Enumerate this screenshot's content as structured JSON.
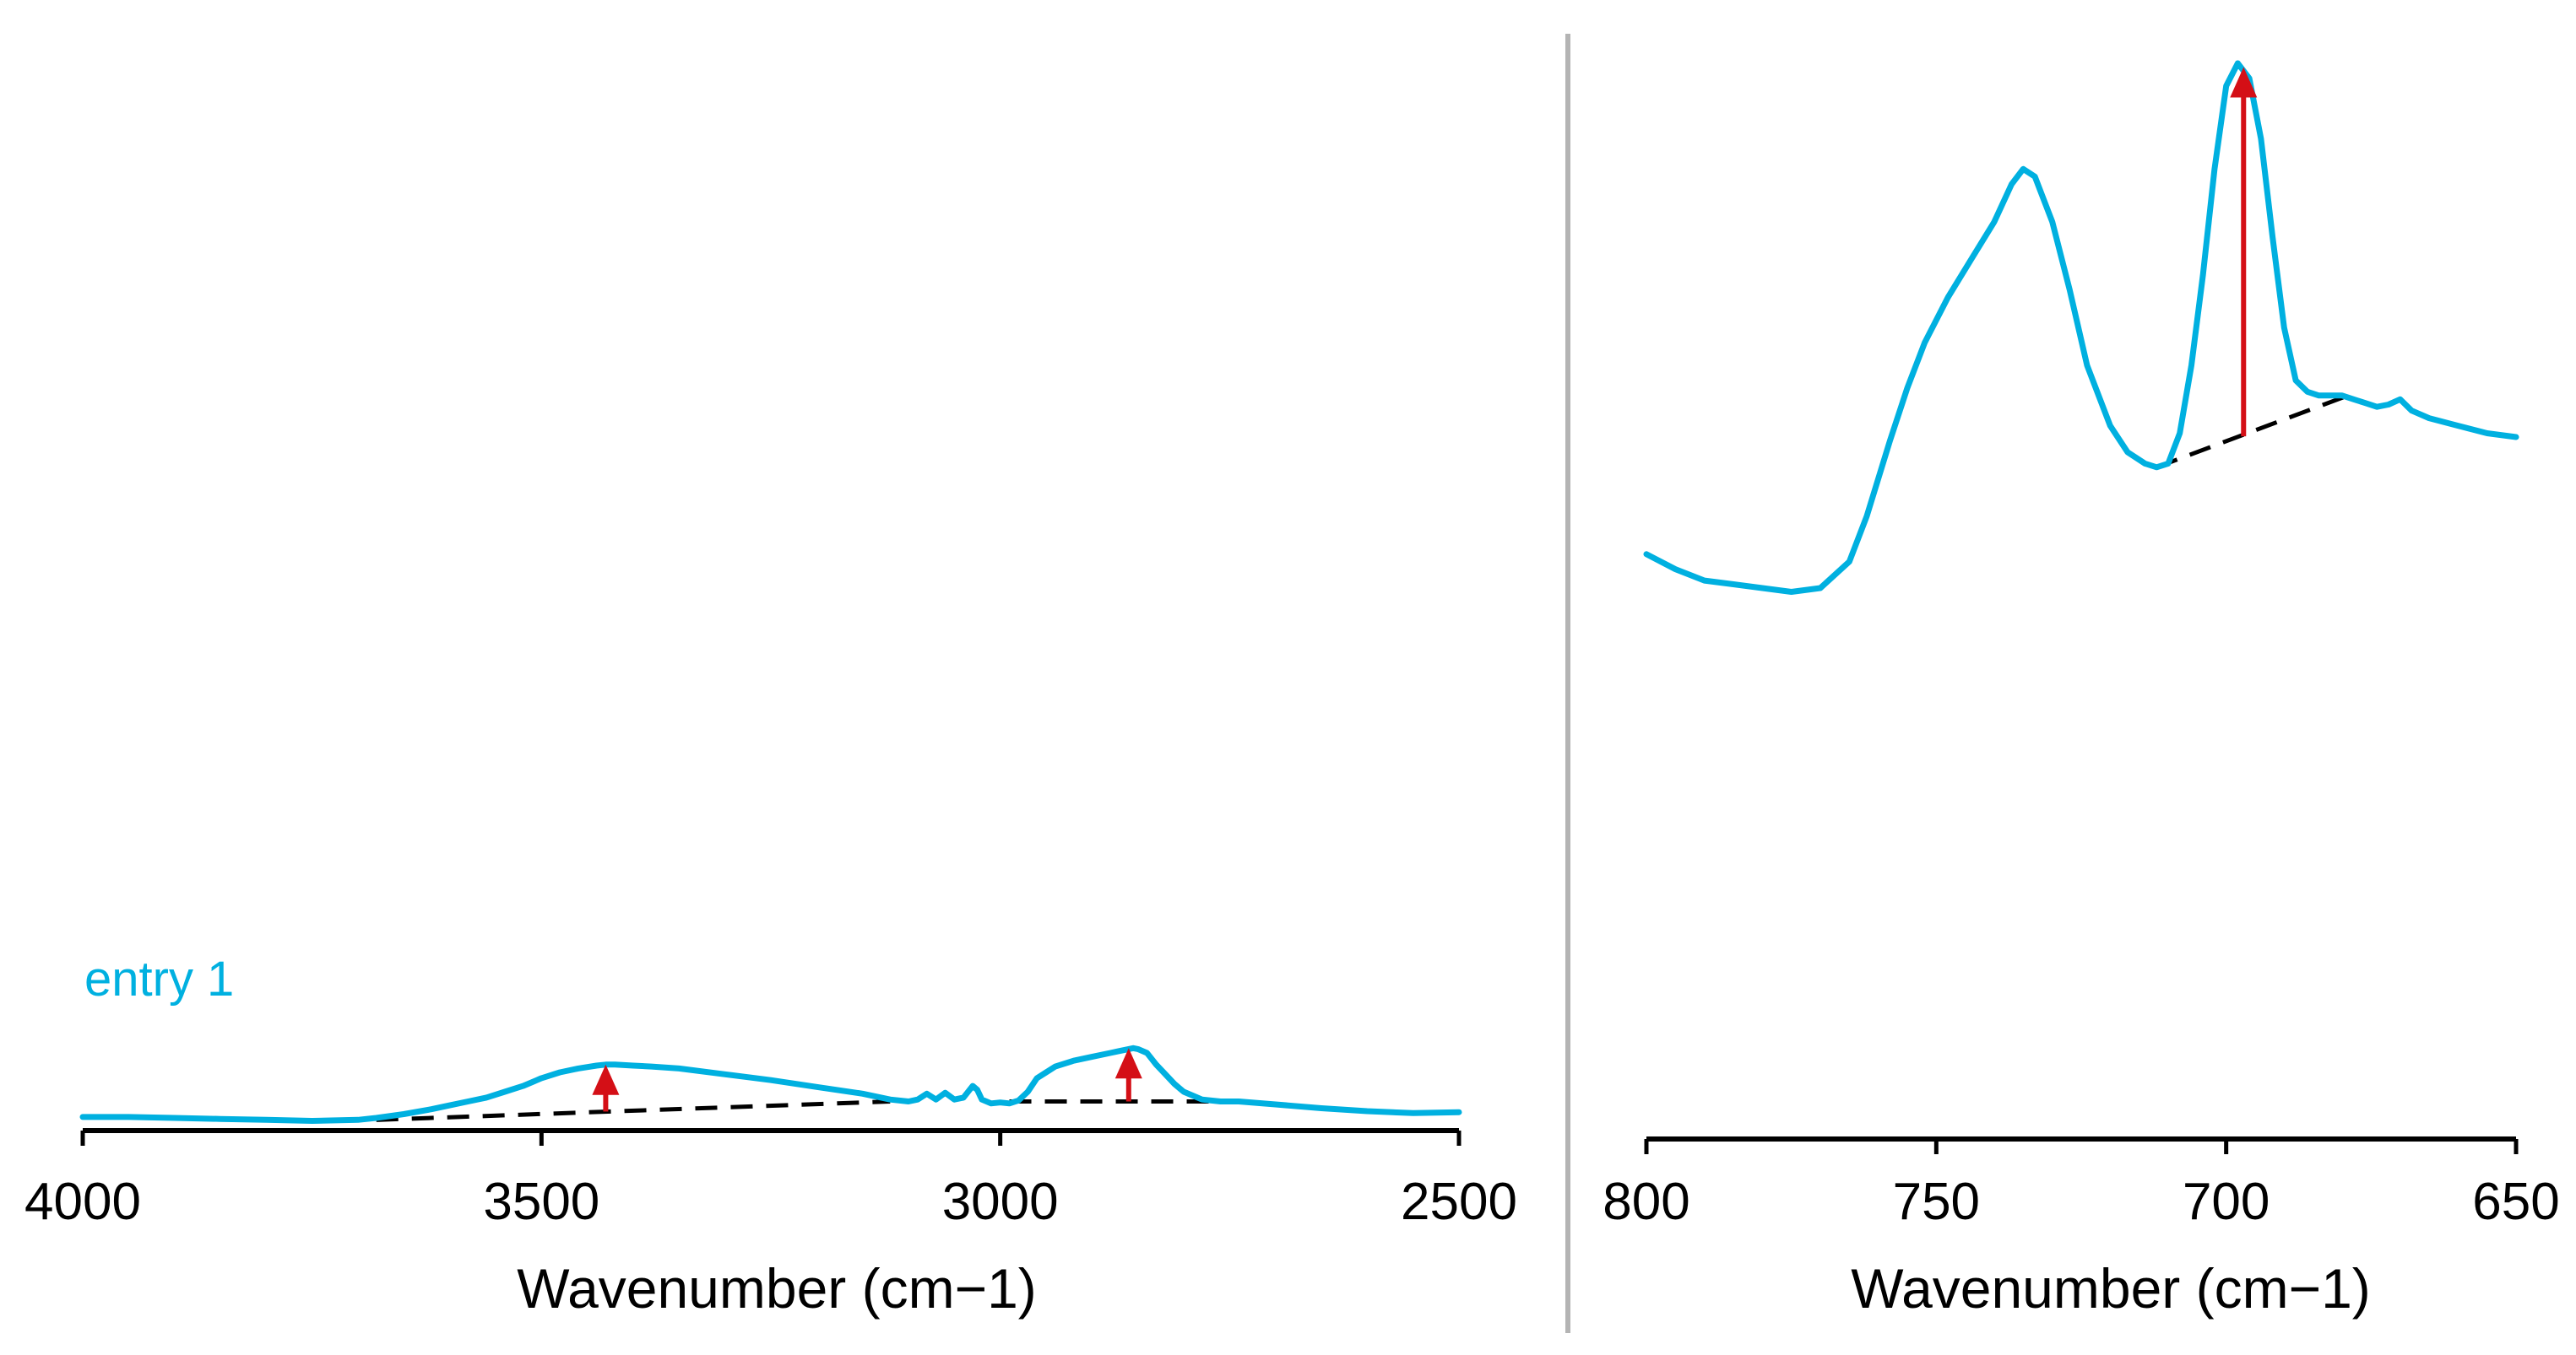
{
  "colors": {
    "spectrum": "#00b0e0",
    "arrow": "#d40f16",
    "baseline": "#000000",
    "divider": "#b4b4b4"
  },
  "chart_data": [
    {
      "type": "line",
      "panel": "left",
      "xlabel": "Wavenumber (cm−1)",
      "xlim": [
        4000,
        2500
      ],
      "x_reversed": true,
      "ylim": [
        0,
        1
      ],
      "xticks": [
        "4000",
        "3500",
        "3000",
        "2500"
      ],
      "xtick_values": [
        4000,
        3500,
        3000,
        2500
      ],
      "annotation": "entry 1",
      "series": [
        {
          "name": "entry 1",
          "x": [
            4000,
            3950,
            3900,
            3850,
            3800,
            3750,
            3700,
            3680,
            3650,
            3620,
            3600,
            3580,
            3560,
            3540,
            3520,
            3500,
            3480,
            3460,
            3440,
            3430,
            3420,
            3400,
            3380,
            3350,
            3300,
            3250,
            3200,
            3150,
            3120,
            3100,
            3090,
            3080,
            3070,
            3060,
            3050,
            3040,
            3035,
            3030,
            3025,
            3020,
            3010,
            3000,
            2990,
            2980,
            2970,
            2960,
            2950,
            2940,
            2920,
            2900,
            2880,
            2870,
            2860,
            2855,
            2850,
            2840,
            2830,
            2820,
            2810,
            2800,
            2780,
            2760,
            2740,
            2700,
            2650,
            2600,
            2550,
            2500
          ],
          "y": [
            0.07,
            0.07,
            0.065,
            0.06,
            0.055,
            0.05,
            0.055,
            0.065,
            0.085,
            0.11,
            0.13,
            0.15,
            0.17,
            0.2,
            0.23,
            0.27,
            0.3,
            0.32,
            0.335,
            0.34,
            0.34,
            0.335,
            0.33,
            0.32,
            0.29,
            0.26,
            0.225,
            0.19,
            0.16,
            0.15,
            0.16,
            0.19,
            0.16,
            0.195,
            0.16,
            0.17,
            0.2,
            0.23,
            0.21,
            0.16,
            0.14,
            0.145,
            0.14,
            0.155,
            0.2,
            0.27,
            0.3,
            0.33,
            0.36,
            0.38,
            0.4,
            0.41,
            0.42,
            0.425,
            0.42,
            0.4,
            0.34,
            0.29,
            0.24,
            0.2,
            0.16,
            0.15,
            0.15,
            0.135,
            0.115,
            0.1,
            0.09,
            0.095
          ]
        }
      ],
      "baselines": [
        {
          "x": [
            3680,
            3120
          ],
          "y": [
            0.055,
            0.15
          ]
        },
        {
          "x": [
            2990,
            2750
          ],
          "y": [
            0.15,
            0.15
          ]
        }
      ],
      "arrows": [
        {
          "x": 3430,
          "y_from": 0.098,
          "y_to": 0.34
        },
        {
          "x": 2860,
          "y_from": 0.15,
          "y_to": 0.425
        }
      ]
    },
    {
      "type": "line",
      "panel": "right",
      "xlabel": "Wavenumber (cm−1)",
      "xlim": [
        800,
        650
      ],
      "x_reversed": true,
      "ylim": [
        0,
        1
      ],
      "xticks": [
        "800",
        "750",
        "700",
        "650"
      ],
      "xtick_values": [
        800,
        750,
        700,
        650
      ],
      "series": [
        {
          "name": "entry 1",
          "x": [
            800,
            795,
            790,
            785,
            780,
            775,
            770,
            765,
            762,
            758,
            755,
            752,
            748,
            744,
            740,
            737,
            735,
            733,
            730,
            727,
            724,
            720,
            717,
            714,
            712,
            710,
            708,
            706,
            704,
            702,
            700,
            698,
            696,
            694,
            692,
            690,
            688,
            686,
            684,
            682,
            680,
            678,
            676,
            674,
            672,
            670,
            668,
            665,
            660,
            655,
            650
          ],
          "y": [
            0.35,
            0.33,
            0.315,
            0.31,
            0.305,
            0.3,
            0.305,
            0.34,
            0.4,
            0.5,
            0.57,
            0.63,
            0.69,
            0.74,
            0.79,
            0.84,
            0.86,
            0.85,
            0.79,
            0.7,
            0.6,
            0.52,
            0.485,
            0.47,
            0.465,
            0.47,
            0.51,
            0.6,
            0.72,
            0.86,
            0.97,
            1.0,
            0.98,
            0.9,
            0.77,
            0.65,
            0.58,
            0.565,
            0.56,
            0.56,
            0.56,
            0.555,
            0.55,
            0.545,
            0.548,
            0.555,
            0.54,
            0.53,
            0.52,
            0.51,
            0.505
          ]
        }
      ],
      "baselines": [
        {
          "x": [
            712,
            679
          ],
          "y": [
            0.465,
            0.56
          ]
        }
      ],
      "arrows": [
        {
          "x": 697,
          "y_from": 0.506,
          "y_to": 0.995
        }
      ]
    }
  ]
}
